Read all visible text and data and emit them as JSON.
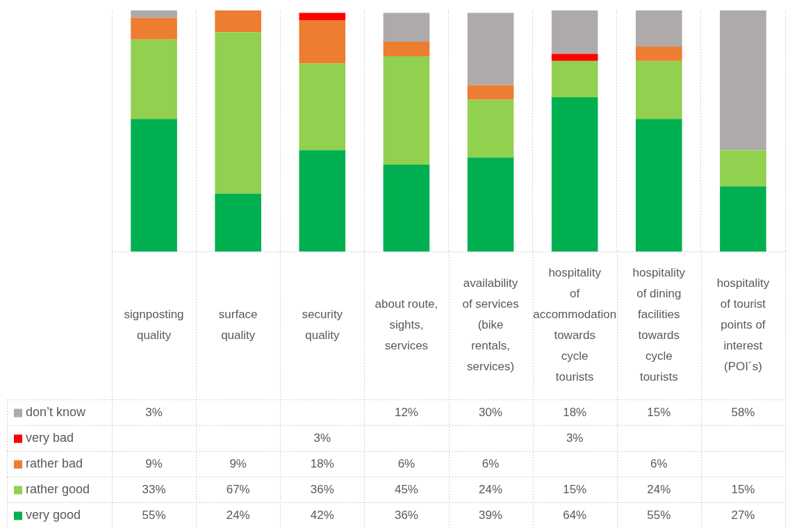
{
  "chart_data": {
    "type": "bar",
    "stacked": true,
    "legend": "bottom",
    "grid": "x",
    "categories": [
      "signposting quality",
      "surface quality",
      "security quality",
      "about route, sights, services",
      "availability of services (bike rentals, services)",
      "hospitality of accommodation towards cycle tourists",
      "hospitality of dining facilities towards cycle tourists",
      "hospitality of tourist points of interest (POI´s)"
    ],
    "series": [
      {
        "name": "very good",
        "color": "#00b050",
        "values": [
          55,
          24,
          42,
          36,
          39,
          64,
          55,
          27
        ],
        "value_labels": [
          "55%",
          "24%",
          "42%",
          "36%",
          "39%",
          "64%",
          "55%",
          "27%"
        ]
      },
      {
        "name": "rather good",
        "color": "#92d050",
        "values": [
          33,
          67,
          36,
          45,
          24,
          15,
          24,
          15
        ],
        "value_labels": [
          "33%",
          "67%",
          "36%",
          "45%",
          "24%",
          "15%",
          "24%",
          "15%"
        ]
      },
      {
        "name": "rather bad",
        "color": "#ed7d31",
        "values": [
          9,
          9,
          18,
          6,
          6,
          null,
          6,
          null
        ],
        "value_labels": [
          "9%",
          "9%",
          "18%",
          "6%",
          "6%",
          null,
          "6%",
          null
        ]
      },
      {
        "name": "very bad",
        "color": "#ff0000",
        "values": [
          null,
          null,
          3,
          null,
          null,
          3,
          null,
          null
        ],
        "value_labels": [
          null,
          null,
          "3%",
          null,
          null,
          "3%",
          null,
          null
        ]
      },
      {
        "name": "don’t know",
        "color": "#aeaaaa",
        "values": [
          3,
          null,
          null,
          12,
          30,
          18,
          15,
          58
        ],
        "value_labels": [
          "3%",
          null,
          null,
          "12%",
          "30%",
          "18%",
          "15%",
          "58%"
        ]
      }
    ]
  }
}
